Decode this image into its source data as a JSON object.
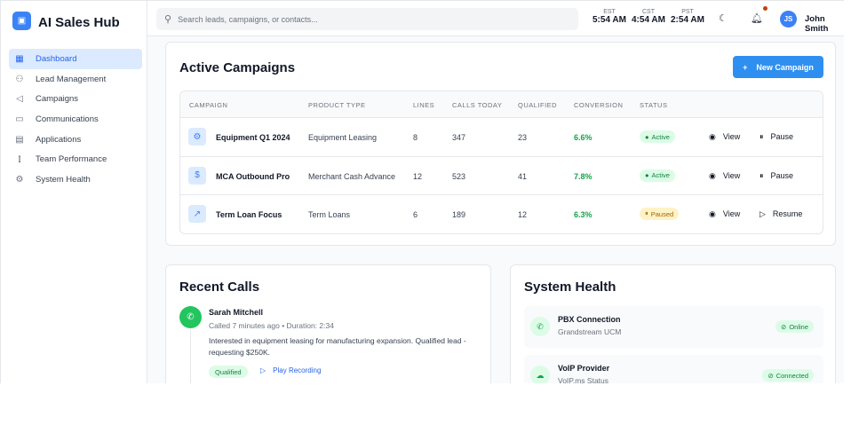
{
  "app": {
    "title": "AI Sales Hub",
    "logo_icon": "robot-icon",
    "accent": "#3b82f6"
  },
  "sidebar": {
    "items": [
      {
        "label": "Dashboard",
        "icon": "dashboard-icon",
        "glyph": "▦",
        "active": true
      },
      {
        "label": "Lead Management",
        "icon": "users-icon",
        "glyph": "⚇"
      },
      {
        "label": "Campaigns",
        "icon": "megaphone-icon",
        "glyph": "◁"
      },
      {
        "label": "Communications",
        "icon": "message-icon",
        "glyph": "▭"
      },
      {
        "label": "Applications",
        "icon": "document-icon",
        "glyph": "▤"
      },
      {
        "label": "Team Performance",
        "icon": "bar-chart-icon",
        "glyph": "⫾"
      },
      {
        "label": "System Health",
        "icon": "gear-icon",
        "glyph": "⚙"
      }
    ]
  },
  "header": {
    "search_placeholder": "Search leads, campaigns, or contacts...",
    "timezones": [
      {
        "label": "EST",
        "time": "5:54 AM"
      },
      {
        "label": "CST",
        "time": "4:54 AM"
      },
      {
        "label": "PST",
        "time": "2:54 AM"
      }
    ],
    "user": {
      "initials": "JS",
      "name": "John Smith"
    }
  },
  "campaigns": {
    "title": "Active Campaigns",
    "new_button": "New Campaign",
    "columns": [
      "CAMPAIGN",
      "PRODUCT TYPE",
      "LINES",
      "CALLS TODAY",
      "QUALIFIED",
      "CONVERSION",
      "STATUS"
    ],
    "rows": [
      {
        "icon": "gear-icon",
        "glyph": "⚙",
        "name": "Equipment Q1 2024",
        "product": "Equipment Leasing",
        "lines": "8",
        "calls": "347",
        "qualified": "23",
        "conversion": "6.6%",
        "status": "Active",
        "action": "Pause",
        "action_glyph": "⏸"
      },
      {
        "icon": "dollar-icon",
        "glyph": "$",
        "name": "MCA Outbound Pro",
        "product": "Merchant Cash Advance",
        "lines": "12",
        "calls": "523",
        "qualified": "41",
        "conversion": "7.8%",
        "status": "Active",
        "action": "Pause",
        "action_glyph": "⏸"
      },
      {
        "icon": "trend-icon",
        "glyph": "↗",
        "name": "Term Loan Focus",
        "product": "Term Loans",
        "lines": "6",
        "calls": "189",
        "qualified": "12",
        "conversion": "6.3%",
        "status": "Paused",
        "action": "Resume",
        "action_glyph": "▷"
      }
    ],
    "view_label": "View"
  },
  "recent_calls": {
    "title": "Recent Calls",
    "items": [
      {
        "name": "Sarah Mitchell",
        "meta": "Called 7 minutes ago • Duration: 2:34",
        "note": "Interested in equipment leasing for manufacturing expansion. Qualified lead - requesting $250K.",
        "tag": "Qualified",
        "play": "Play Recording"
      }
    ]
  },
  "system_health": {
    "title": "System Health",
    "items": [
      {
        "name": "PBX Connection",
        "sub": "Grandstream UCM",
        "status": "Online"
      },
      {
        "name": "VoIP Provider",
        "sub": "VoIP.ms Status",
        "status": "Connected"
      }
    ]
  }
}
